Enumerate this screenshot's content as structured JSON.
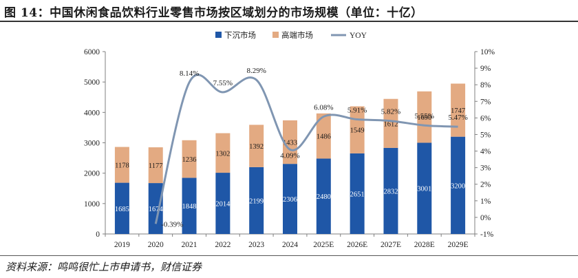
{
  "title": "图 14：中国休闲食品饮料行业零售市场按区域划分的市场规模（单位：十亿）",
  "source": "资料来源：鸣鸣很忙上市申请书，财信证券",
  "chart_data": {
    "type": "bar",
    "stacked": true,
    "categories": [
      "2019",
      "2020",
      "2021",
      "2022",
      "2023",
      "2024",
      "2025E",
      "2026E",
      "2027E",
      "2028E",
      "2029E"
    ],
    "series": [
      {
        "name": "下沉市场",
        "type": "bar",
        "axis": "left",
        "color": "#1f57a7",
        "values": [
          1685,
          1674,
          1848,
          2014,
          2199,
          2306,
          2480,
          2651,
          2832,
          3001,
          3200
        ]
      },
      {
        "name": "高端市场",
        "type": "bar",
        "axis": "left",
        "color": "#e3aa82",
        "values": [
          1178,
          1177,
          1236,
          1302,
          1392,
          1433,
          1486,
          1549,
          1612,
          1690,
          1747
        ]
      },
      {
        "name": "YOY",
        "type": "line",
        "axis": "right",
        "color": "#8096b2",
        "values": [
          null,
          -0.39,
          8.14,
          7.55,
          8.29,
          4.09,
          6.08,
          5.91,
          5.82,
          5.55,
          5.47
        ]
      }
    ],
    "yoy_labels": [
      "",
      "-0.39%",
      "8.14%",
      "7.55%",
      "8.29%",
      "4.09%",
      "6.08%",
      "5.91%",
      "5.82%",
      "5.55%",
      "5.47%"
    ],
    "ylim_left": [
      0,
      6000
    ],
    "yticks_left": [
      0,
      1000,
      2000,
      3000,
      4000,
      5000,
      6000
    ],
    "ylim_right": [
      -1,
      10
    ],
    "yticks_right": [
      "-1%",
      "0%",
      "1%",
      "2%",
      "3%",
      "4%",
      "5%",
      "6%",
      "7%",
      "8%",
      "9%",
      "10%"
    ],
    "legend_position": "top-center"
  }
}
